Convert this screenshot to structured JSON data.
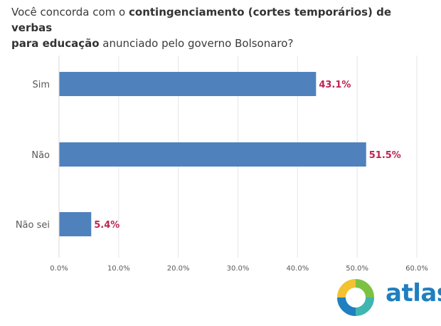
{
  "question": {
    "part1": "Você concorda com o ",
    "part2_bold": "contingenciamento (cortes temporários) de verbas",
    "part3_bold": "para educação",
    "part4": " anunciado pelo governo Bolsonaro?"
  },
  "chart_data": {
    "type": "bar",
    "orientation": "horizontal",
    "categories": [
      "Sim",
      "Não",
      "Não sei"
    ],
    "values": [
      43.1,
      51.5,
      5.4
    ],
    "value_labels": [
      "43.1%",
      "51.5%",
      "5.4%"
    ],
    "xlim": [
      0,
      60
    ],
    "xticks": [
      "0.0%",
      "10.0%",
      "20.0%",
      "30.0%",
      "40.0%",
      "50.0%",
      "60.0%"
    ],
    "grid": true,
    "bar_color": "#4f81bd",
    "label_color": "#c0234e"
  },
  "logo": {
    "text": "atlas",
    "icon": "atlas-logo-icon",
    "colors": [
      "#f2c230",
      "#7cc242",
      "#3fb6b0",
      "#1f7fbf"
    ]
  }
}
